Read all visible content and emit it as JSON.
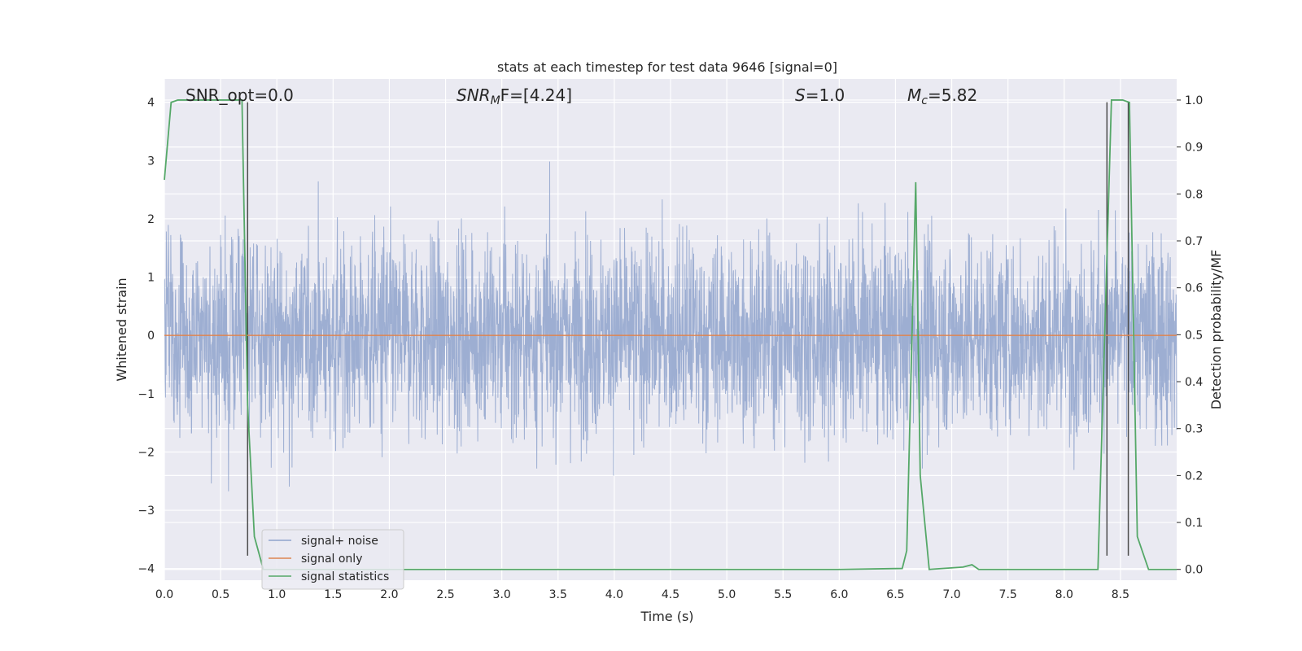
{
  "chart_data": {
    "type": "line",
    "title": "stats at each timestep for test data 9646 [signal=0]",
    "xlabel": "Time (s)",
    "ylabel": "Whitened strain",
    "y2label": "Detection probability/MF",
    "xlim": [
      0.0,
      9.0
    ],
    "ylim": [
      -4.2,
      4.4
    ],
    "y2lim": [
      -0.023,
      1.045
    ],
    "xticks": [
      0.0,
      0.5,
      1.0,
      1.5,
      2.0,
      2.5,
      3.0,
      3.5,
      4.0,
      4.5,
      5.0,
      5.5,
      6.0,
      6.5,
      7.0,
      7.5,
      8.0,
      8.5
    ],
    "xtick_labels": [
      "0.0",
      "0.5",
      "1.0",
      "1.5",
      "2.0",
      "2.5",
      "3.0",
      "3.5",
      "4.0",
      "4.5",
      "5.0",
      "5.5",
      "6.0",
      "6.5",
      "7.0",
      "7.5",
      "8.0",
      "8.5"
    ],
    "yticks": [
      -4,
      -3,
      -2,
      -1,
      0,
      1,
      2,
      3,
      4
    ],
    "ytick_labels": [
      "−4",
      "−3",
      "−2",
      "−1",
      "0",
      "1",
      "2",
      "3",
      "4"
    ],
    "y2ticks": [
      0.0,
      0.1,
      0.2,
      0.3,
      0.4,
      0.5,
      0.6,
      0.7,
      0.8,
      0.9,
      1.0
    ],
    "y2tick_labels": [
      "0.0",
      "0.1",
      "0.2",
      "0.3",
      "0.4",
      "0.5",
      "0.6",
      "0.7",
      "0.8",
      "0.9",
      "1.0"
    ],
    "grid": true,
    "legend_placement": "lower-left",
    "annotations": {
      "snr_opt": "SNR_opt=0.0",
      "snr_mf_sym": "SNR",
      "snr_mf_sub": "M",
      "snr_mf_rest": "F=[4.24]",
      "s_sym": "S",
      "s_rest": "=1.0",
      "mc_sym": "M",
      "mc_sub": "c",
      "mc_rest": "=5.82"
    },
    "series": [
      {
        "name": "signal+ noise",
        "color": "#8fa3cc",
        "axis": "left",
        "noise_sigma": 0.85,
        "duration": 9.0
      },
      {
        "name": "signal only",
        "color": "#dd8452",
        "axis": "left",
        "x": [
          0.0,
          9.0
        ],
        "y": [
          0.0,
          0.0
        ]
      },
      {
        "name": "signal statistics",
        "color": "#55a868",
        "axis": "right",
        "x": [
          0.0,
          0.06,
          0.12,
          0.5,
          0.69,
          0.74,
          0.8,
          0.88,
          1.0,
          6.0,
          6.56,
          6.6,
          6.68,
          6.72,
          6.8,
          7.1,
          7.18,
          7.24,
          8.3,
          8.42,
          8.52,
          8.58,
          8.65,
          8.75,
          9.0
        ],
        "y": [
          0.83,
          0.995,
          1.0,
          1.0,
          1.0,
          0.35,
          0.07,
          0.0,
          0.0,
          0.0,
          0.002,
          0.04,
          0.825,
          0.2,
          0.0,
          0.005,
          0.01,
          0.0,
          0.0,
          1.0,
          1.0,
          0.995,
          0.07,
          0.0,
          0.0
        ]
      }
    ],
    "markers": {
      "color": "#4d4d4d",
      "x": [
        0.74,
        8.38,
        8.57
      ],
      "y_bottom": -3.78,
      "y_top": 4.0
    }
  }
}
